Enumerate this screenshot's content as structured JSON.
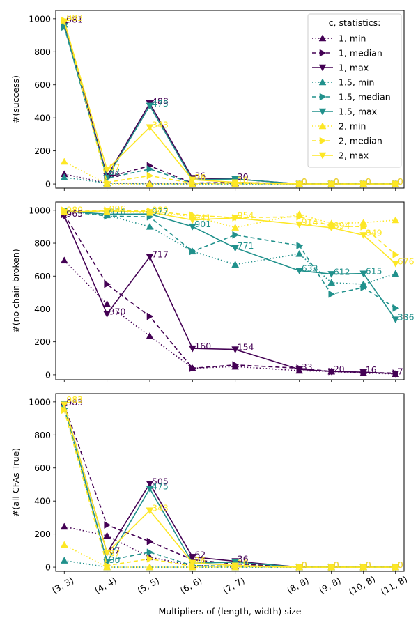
{
  "chart_data": {
    "type": "line",
    "xlabel": "Multipliers of (length, width) size",
    "x_categories": [
      "(3, 3)",
      "(4, 4)",
      "(5, 5)",
      "(6, 6)",
      "(7, 7)",
      "(8, 8)",
      "(9, 8)",
      "(10, 8)",
      "(11, 8)"
    ],
    "x_positions": [
      3,
      4,
      5,
      6,
      7,
      8,
      9,
      10,
      11
    ],
    "x_positions_note": "x positions in category units are derived from the tick spacing",
    "x_pos": [
      1,
      2,
      3,
      4,
      5,
      6.5,
      7.25,
      8,
      8.75
    ],
    "legend": {
      "title": "c, statistics:",
      "location": "top-right",
      "entries": [
        "1, min",
        "1, median",
        "1, max",
        "1.5, min",
        "1.5, median",
        "1.5, max",
        "2, min",
        "2, median",
        "2, max"
      ]
    },
    "colors": {
      "c1": "#440154",
      "c15": "#21918c",
      "c2": "#fde725"
    },
    "panels": [
      {
        "ylabel": "#(success)",
        "ylim": [
          -25,
          1050
        ],
        "yticks": [
          0,
          200,
          400,
          600,
          800,
          1000
        ],
        "series": [
          {
            "name": "1, min",
            "values": [
              60,
              5,
              5,
              5,
              5,
              0,
              0,
              0,
              0
            ]
          },
          {
            "name": "1, median",
            "values": [
              975,
              40,
              110,
              5,
              10,
              0,
              0,
              0,
              0
            ]
          },
          {
            "name": "1, max",
            "values": [
              981,
              46,
              488,
              36,
              30,
              0,
              0,
              0,
              0
            ]
          },
          {
            "name": "1.5, min",
            "values": [
              40,
              5,
              0,
              0,
              0,
              0,
              0,
              0,
              0
            ]
          },
          {
            "name": "1.5, median",
            "values": [
              950,
              35,
              90,
              5,
              5,
              0,
              0,
              0,
              0
            ]
          },
          {
            "name": "1.5, max",
            "values": [
              955,
              37,
              473,
              25,
              30,
              0,
              0,
              0,
              0
            ]
          },
          {
            "name": "2, min",
            "values": [
              135,
              0,
              0,
              0,
              0,
              0,
              0,
              0,
              0
            ]
          },
          {
            "name": "2, median",
            "values": [
              990,
              10,
              50,
              5,
              5,
              0,
              0,
              0,
              0
            ]
          },
          {
            "name": "2, max",
            "values": [
              983,
              87,
              343,
              26,
              10,
              0,
              0,
              0,
              0
            ]
          }
        ],
        "labels": [
          {
            "text": "981",
            "x": 1,
            "y": 981,
            "series": "1, max"
          },
          {
            "text": "983",
            "x": 1,
            "y": 990,
            "series": "2, max"
          },
          {
            "text": "46",
            "x": 2,
            "y": 46,
            "series": "1, max"
          },
          {
            "text": "37",
            "x": 2,
            "y": 60,
            "series": "1.5, max"
          },
          {
            "text": "87",
            "x": 2,
            "y": 87,
            "series": "2, max"
          },
          {
            "text": "488",
            "x": 3,
            "y": 488,
            "series": "1, max"
          },
          {
            "text": "473",
            "x": 3,
            "y": 473,
            "series": "1.5, max"
          },
          {
            "text": "343",
            "x": 3,
            "y": 343,
            "series": "2, max"
          },
          {
            "text": "36",
            "x": 4,
            "y": 36,
            "series": "1, max"
          },
          {
            "text": "26",
            "x": 4,
            "y": 26,
            "series": "2, max"
          },
          {
            "text": "30",
            "x": 5,
            "y": 30,
            "series": "1, max"
          },
          {
            "text": "10",
            "x": 5,
            "y": 10,
            "series": "2, max"
          },
          {
            "text": "0",
            "x": 6.5,
            "y": 0,
            "series": "1, max"
          },
          {
            "text": "0",
            "x": 6.5,
            "y": 0,
            "series": "2, max"
          },
          {
            "text": "0",
            "x": 7.25,
            "y": 0,
            "series": "1, max"
          },
          {
            "text": "0",
            "x": 7.25,
            "y": 0,
            "series": "2, max"
          },
          {
            "text": "0",
            "x": 8,
            "y": 0,
            "series": "1, max"
          },
          {
            "text": "0",
            "x": 8,
            "y": 0,
            "series": "2, max"
          },
          {
            "text": "0",
            "x": 8.75,
            "y": 0,
            "series": "1, max"
          },
          {
            "text": "0",
            "x": 8.75,
            "y": 0,
            "series": "2, max"
          }
        ]
      },
      {
        "ylabel": "#(no chain broken)",
        "ylim": [
          -30,
          1050
        ],
        "yticks": [
          0,
          200,
          400,
          600,
          800,
          1000
        ],
        "series": [
          {
            "name": "1, min",
            "values": [
              695,
              430,
              235,
              40,
              50,
              25,
              20,
              10,
              5
            ]
          },
          {
            "name": "1, median",
            "values": [
              975,
              550,
              355,
              40,
              60,
              40,
              20,
              15,
              10
            ]
          },
          {
            "name": "1, max",
            "values": [
              965,
              370,
              717,
              160,
              154,
              33,
              20,
              16,
              7
            ]
          },
          {
            "name": "1.5, min",
            "values": [
              995,
              970,
              900,
              750,
              670,
              735,
              560,
              550,
              615
            ]
          },
          {
            "name": "1.5, median",
            "values": [
              995,
              965,
              960,
              750,
              850,
              785,
              490,
              530,
              405
            ]
          },
          {
            "name": "1.5, max",
            "values": [
              995,
              976,
              977,
              901,
              771,
              633,
              612,
              615,
              336
            ]
          },
          {
            "name": "2, min",
            "values": [
              990,
              990,
              985,
              965,
              895,
              975,
              920,
              925,
              940
            ]
          },
          {
            "name": "2, median",
            "values": [
              1000,
              1000,
              995,
              970,
              955,
              960,
              905,
              900,
              730
            ]
          },
          {
            "name": "2, max",
            "values": [
              989,
              996,
              989,
              941,
              954,
              914,
              894,
              849,
              676
            ]
          }
        ],
        "labels": [
          {
            "text": "965",
            "x": 1,
            "y": 965,
            "series": "1, max"
          },
          {
            "text": "989",
            "x": 1,
            "y": 989,
            "series": "2, max"
          },
          {
            "text": "370",
            "x": 2,
            "y": 370,
            "series": "1, max"
          },
          {
            "text": "976",
            "x": 2,
            "y": 976,
            "series": "1.5, max"
          },
          {
            "text": "996",
            "x": 2,
            "y": 996,
            "series": "2, max"
          },
          {
            "text": "717",
            "x": 3,
            "y": 717,
            "series": "1, max"
          },
          {
            "text": "977",
            "x": 3,
            "y": 977,
            "series": "1.5, max"
          },
          {
            "text": "989",
            "x": 3,
            "y": 989,
            "series": "2, max"
          },
          {
            "text": "160",
            "x": 4,
            "y": 160,
            "series": "1, max"
          },
          {
            "text": "901",
            "x": 4,
            "y": 901,
            "series": "1.5, max"
          },
          {
            "text": "941",
            "x": 4,
            "y": 941,
            "series": "2, max"
          },
          {
            "text": "154",
            "x": 5,
            "y": 154,
            "series": "1, max"
          },
          {
            "text": "771",
            "x": 5,
            "y": 771,
            "series": "1.5, max"
          },
          {
            "text": "954",
            "x": 5,
            "y": 954,
            "series": "2, max"
          },
          {
            "text": "33",
            "x": 6.5,
            "y": 33,
            "series": "1, max"
          },
          {
            "text": "633",
            "x": 6.5,
            "y": 633,
            "series": "1.5, max"
          },
          {
            "text": "914",
            "x": 6.5,
            "y": 914,
            "series": "2, max"
          },
          {
            "text": "20",
            "x": 7.25,
            "y": 20,
            "series": "1, max"
          },
          {
            "text": "612",
            "x": 7.25,
            "y": 612,
            "series": "1.5, max"
          },
          {
            "text": "894",
            "x": 7.25,
            "y": 894,
            "series": "2, max"
          },
          {
            "text": "16",
            "x": 8,
            "y": 16,
            "series": "1, max"
          },
          {
            "text": "615",
            "x": 8,
            "y": 615,
            "series": "1.5, max"
          },
          {
            "text": "849",
            "x": 8,
            "y": 849,
            "series": "2, max"
          },
          {
            "text": "7",
            "x": 8.75,
            "y": 7,
            "series": "1, max"
          },
          {
            "text": "336",
            "x": 8.75,
            "y": 336,
            "series": "1.5, max"
          },
          {
            "text": "676",
            "x": 8.75,
            "y": 676,
            "series": "2, max"
          }
        ]
      },
      {
        "ylabel": "#(all CFAs True)",
        "ylim": [
          -25,
          1050
        ],
        "yticks": [
          0,
          200,
          400,
          600,
          800,
          1000
        ],
        "series": [
          {
            "name": "1, min",
            "values": [
              245,
              190,
              60,
              10,
              5,
              0,
              0,
              0,
              0
            ]
          },
          {
            "name": "1, median",
            "values": [
              980,
              255,
              155,
              45,
              20,
              0,
              0,
              0,
              0
            ]
          },
          {
            "name": "1, max",
            "values": [
              983,
              87,
              505,
              62,
              36,
              0,
              0,
              0,
              0
            ]
          },
          {
            "name": "1.5, min",
            "values": [
              40,
              0,
              0,
              0,
              0,
              0,
              0,
              0,
              0
            ]
          },
          {
            "name": "1.5, median",
            "values": [
              960,
              40,
              90,
              10,
              5,
              0,
              0,
              0,
              0
            ]
          },
          {
            "name": "1.5, max",
            "values": [
              985,
              30,
              475,
              25,
              30,
              0,
              0,
              0,
              0
            ]
          },
          {
            "name": "2, min",
            "values": [
              135,
              0,
              0,
              0,
              0,
              0,
              0,
              0,
              0
            ]
          },
          {
            "name": "2, median",
            "values": [
              950,
              10,
              50,
              5,
              5,
              0,
              0,
              0,
              0
            ]
          },
          {
            "name": "2, max",
            "values": [
              983,
              87,
              343,
              26,
              10,
              0,
              0,
              0,
              0
            ]
          }
        ],
        "labels": [
          {
            "text": "983",
            "x": 1,
            "y": 983,
            "series": "1, max"
          },
          {
            "text": "983",
            "x": 1,
            "y": 1000,
            "series": "2, max"
          },
          {
            "text": "87",
            "x": 2,
            "y": 87,
            "series": "1, max"
          },
          {
            "text": "30",
            "x": 2,
            "y": 30,
            "series": "1.5, max"
          },
          {
            "text": "87",
            "x": 2,
            "y": 70,
            "series": "2, max"
          },
          {
            "text": "505",
            "x": 3,
            "y": 505,
            "series": "1, max"
          },
          {
            "text": "475",
            "x": 3,
            "y": 475,
            "series": "1.5, max"
          },
          {
            "text": "343",
            "x": 3,
            "y": 343,
            "series": "2, max"
          },
          {
            "text": "62",
            "x": 4,
            "y": 62,
            "series": "1, max"
          },
          {
            "text": "26",
            "x": 4,
            "y": 26,
            "series": "2, max"
          },
          {
            "text": "36",
            "x": 5,
            "y": 36,
            "series": "1, max"
          },
          {
            "text": "10",
            "x": 5,
            "y": 10,
            "series": "2, max"
          },
          {
            "text": "0",
            "x": 6.5,
            "y": 0,
            "series": "1, max"
          },
          {
            "text": "0",
            "x": 6.5,
            "y": 0,
            "series": "2, max"
          },
          {
            "text": "0",
            "x": 7.25,
            "y": 0,
            "series": "1, max"
          },
          {
            "text": "0",
            "x": 7.25,
            "y": 0,
            "series": "2, max"
          },
          {
            "text": "0",
            "x": 8,
            "y": 0,
            "series": "1, max"
          },
          {
            "text": "0",
            "x": 8,
            "y": 0,
            "series": "2, max"
          },
          {
            "text": "0",
            "x": 8.75,
            "y": 0,
            "series": "1, max"
          },
          {
            "text": "0",
            "x": 8.75,
            "y": 0,
            "series": "2, max"
          }
        ]
      }
    ]
  }
}
